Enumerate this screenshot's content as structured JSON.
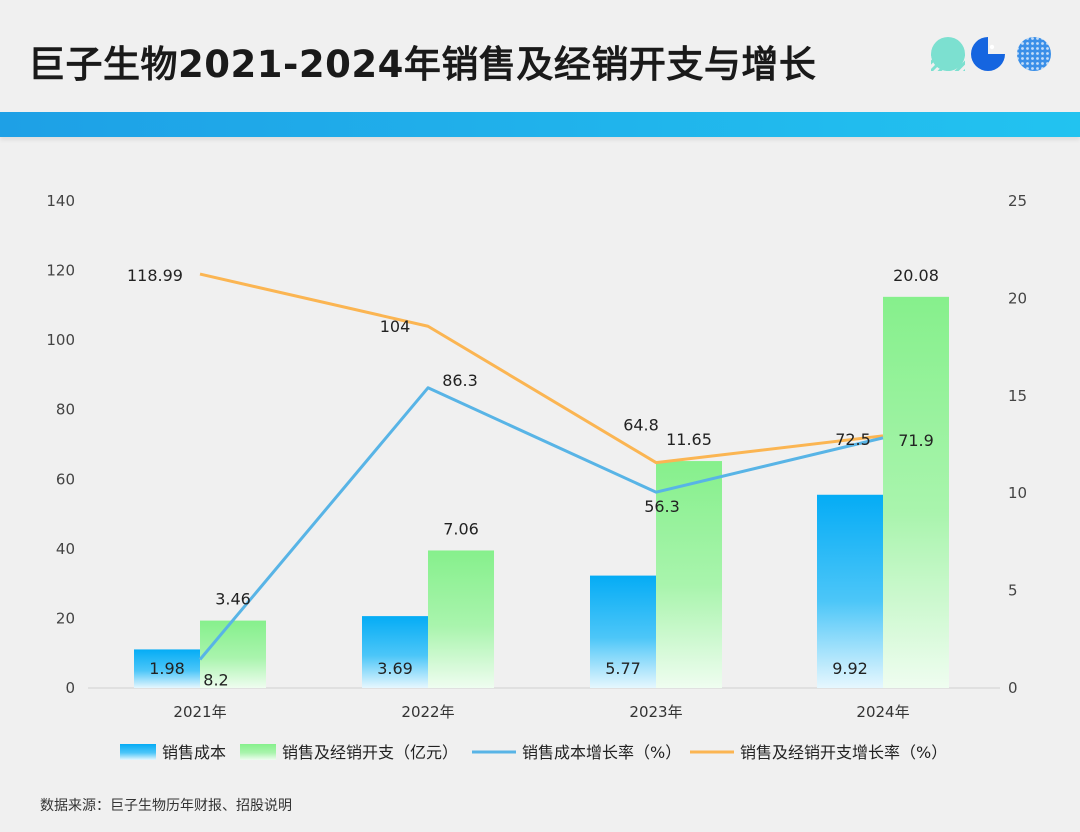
{
  "title": "巨子生物2021-2024年销售及经销开支与增长",
  "source": "数据来源：巨子生物历年财报、招股说明",
  "colors": {
    "bar_cost": "#0ab0f5",
    "bar_expense": "#86f08c",
    "line_cost": "#58b4e6",
    "line_expense": "#fbb552",
    "accent": "#1ea0e6"
  },
  "chart_data": {
    "type": "bar",
    "categories": [
      "2021年",
      "2022年",
      "2023年",
      "2024年"
    ],
    "y_left": {
      "ticks": [
        0,
        20,
        40,
        60,
        80,
        100,
        120,
        140
      ],
      "range": [
        0,
        140
      ]
    },
    "y_right": {
      "ticks": [
        0,
        5,
        10,
        15,
        20,
        25
      ],
      "range": [
        0,
        25
      ]
    },
    "bar_series": [
      {
        "name": "销售成本",
        "values": [
          1.98,
          3.69,
          5.77,
          9.92
        ],
        "labels": [
          "1.98",
          "3.69",
          "5.77",
          "9.92"
        ],
        "axis": "right"
      },
      {
        "name": "销售及经销开支（亿元）",
        "values": [
          3.46,
          7.06,
          11.65,
          20.08
        ],
        "labels": [
          "3.46",
          "7.06",
          "11.65",
          "20.08"
        ],
        "axis": "right"
      }
    ],
    "line_series": [
      {
        "name": "销售成本增长率（%）",
        "values": [
          8.2,
          86.3,
          56.3,
          71.9
        ],
        "labels": [
          "8.2",
          "86.3",
          "56.3",
          "71.9"
        ],
        "axis": "left"
      },
      {
        "name": "销售及经销开支增长率（%）",
        "values": [
          118.99,
          104,
          64.8,
          72.5
        ],
        "labels": [
          "118.99",
          "104",
          "64.8",
          "72.5"
        ],
        "axis": "left"
      }
    ],
    "legend_position": "bottom"
  }
}
